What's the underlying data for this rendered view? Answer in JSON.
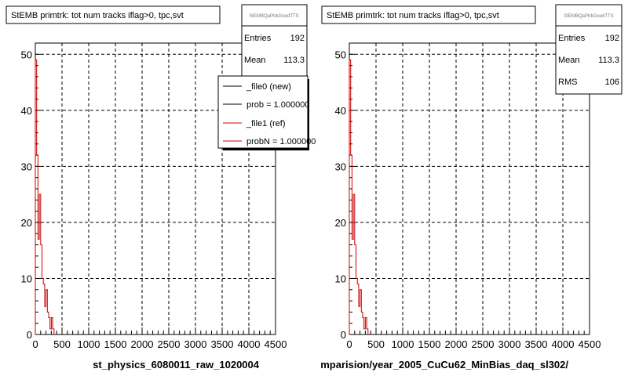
{
  "chart_data": [
    {
      "type": "histogram",
      "title": "StEMB primtrk: tot num tracks iflag>0, tpc,svt",
      "xlabel": "st_physics_6080011_raw_1020004",
      "xlim": [
        0,
        4500
      ],
      "ylim": [
        0,
        52
      ],
      "x_ticks": [
        0,
        500,
        1000,
        1500,
        2000,
        2500,
        3000,
        3500,
        4000,
        4500
      ],
      "y_ticks": [
        0,
        10,
        20,
        30,
        40,
        50
      ],
      "grid": true,
      "stats": {
        "name": "StEMBQaPtrkGoodTTS",
        "rows": [
          {
            "label": "Entries",
            "value": "192"
          },
          {
            "label": "Mean",
            "value": "113.3"
          }
        ]
      },
      "legend": {
        "placement": "top-right",
        "entries": [
          {
            "label": "_file0 (new)",
            "color": "#000000"
          },
          {
            "label": "prob = 1.000000",
            "color": "#000000"
          },
          {
            "label": "_file1 (ref)",
            "color": "#cc0000"
          },
          {
            "label": "probN = 1.000000",
            "color": "#cc0000"
          }
        ]
      },
      "series": [
        {
          "color": "#cc0000",
          "bin_width": 25,
          "values": [
            49,
            32,
            17,
            25,
            16,
            10,
            9,
            5,
            8,
            4,
            3,
            1,
            3,
            1
          ]
        }
      ]
    },
    {
      "type": "histogram",
      "title": "StEMB primtrk: tot num tracks iflag>0, tpc,svt",
      "xlabel": "mparision/year_2005_CuCu62_MinBias_daq_sl302/",
      "xlim": [
        0,
        4500
      ],
      "ylim": [
        0,
        52
      ],
      "x_ticks": [
        0,
        500,
        1000,
        1500,
        2000,
        2500,
        3000,
        3500,
        4000,
        4500
      ],
      "y_ticks": [
        0,
        10,
        20,
        30,
        40,
        50
      ],
      "grid": true,
      "stats": {
        "name": "StEMBQaPtrkGoodTTS",
        "rows": [
          {
            "label": "Entries",
            "value": "192"
          },
          {
            "label": "Mean",
            "value": "113.3"
          },
          {
            "label": "RMS",
            "value": "106"
          }
        ]
      },
      "series": [
        {
          "color": "#cc0000",
          "bin_width": 25,
          "values": [
            49,
            32,
            17,
            25,
            16,
            10,
            9,
            5,
            8,
            4,
            3,
            1,
            3,
            1
          ]
        }
      ]
    }
  ]
}
